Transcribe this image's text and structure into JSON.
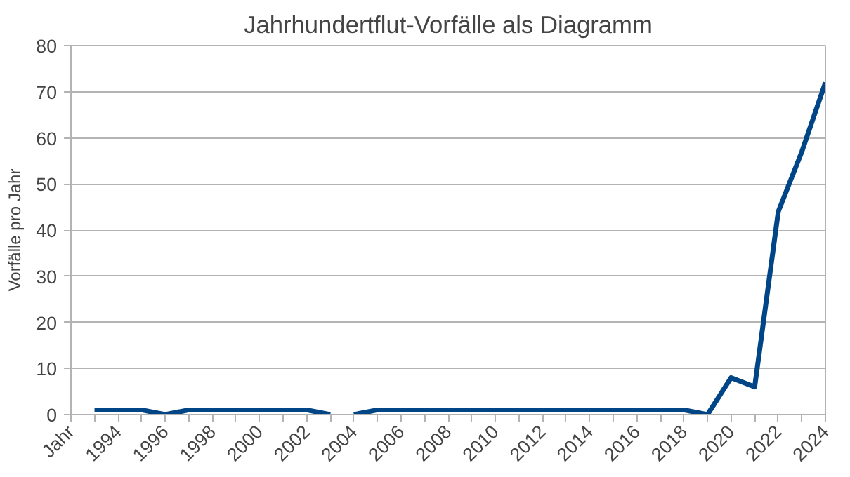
{
  "chart_data": {
    "type": "line",
    "title": "Jahrhundertflut-Vorfälle als Diagramm",
    "ylabel": "Vorfälle pro Jahr",
    "x": [
      1993,
      1994,
      1995,
      1996,
      1997,
      1998,
      1999,
      2000,
      2001,
      2002,
      2003,
      2003.5,
      2004,
      2005,
      2006,
      2007,
      2008,
      2009,
      2010,
      2011,
      2012,
      2013,
      2014,
      2015,
      2016,
      2017,
      2018,
      2019,
      2020,
      2021,
      2022,
      2023,
      2024
    ],
    "series": [
      {
        "color": "#004586",
        "values": [
          1,
          1,
          1,
          0,
          1,
          1,
          1,
          1,
          1,
          1,
          0,
          null,
          0,
          1,
          1,
          1,
          1,
          1,
          1,
          1,
          1,
          1,
          1,
          1,
          1,
          1,
          1,
          0,
          8,
          6,
          44,
          57,
          72
        ]
      }
    ],
    "xlim": [
      1992,
      2024
    ],
    "xticks": [
      {
        "value": 1992,
        "label": "Jahr"
      },
      {
        "value": 1993,
        "label": null
      },
      1994,
      {
        "value": 1995,
        "label": null
      },
      1996,
      {
        "value": 1997,
        "label": null
      },
      1998,
      {
        "value": 1999,
        "label": null
      },
      2000,
      {
        "value": 2001,
        "label": null
      },
      2002,
      {
        "value": 2003,
        "label": null
      },
      2004,
      {
        "value": 2005,
        "label": null
      },
      2006,
      {
        "value": 2007,
        "label": null
      },
      2008,
      {
        "value": 2009,
        "label": null
      },
      2010,
      {
        "value": 2011,
        "label": null
      },
      2012,
      {
        "value": 2013,
        "label": null
      },
      2014,
      {
        "value": 2015,
        "label": null
      },
      2016,
      {
        "value": 2017,
        "label": null
      },
      2018,
      {
        "value": 2019,
        "label": null
      },
      2020,
      {
        "value": 2021,
        "label": null
      },
      2022,
      {
        "value": 2023,
        "label": null
      },
      2024
    ],
    "ylim": [
      0,
      80
    ],
    "yticks": [
      0,
      10,
      20,
      30,
      40,
      50,
      60,
      70,
      80
    ],
    "grid": "y",
    "line_style": "solid"
  }
}
